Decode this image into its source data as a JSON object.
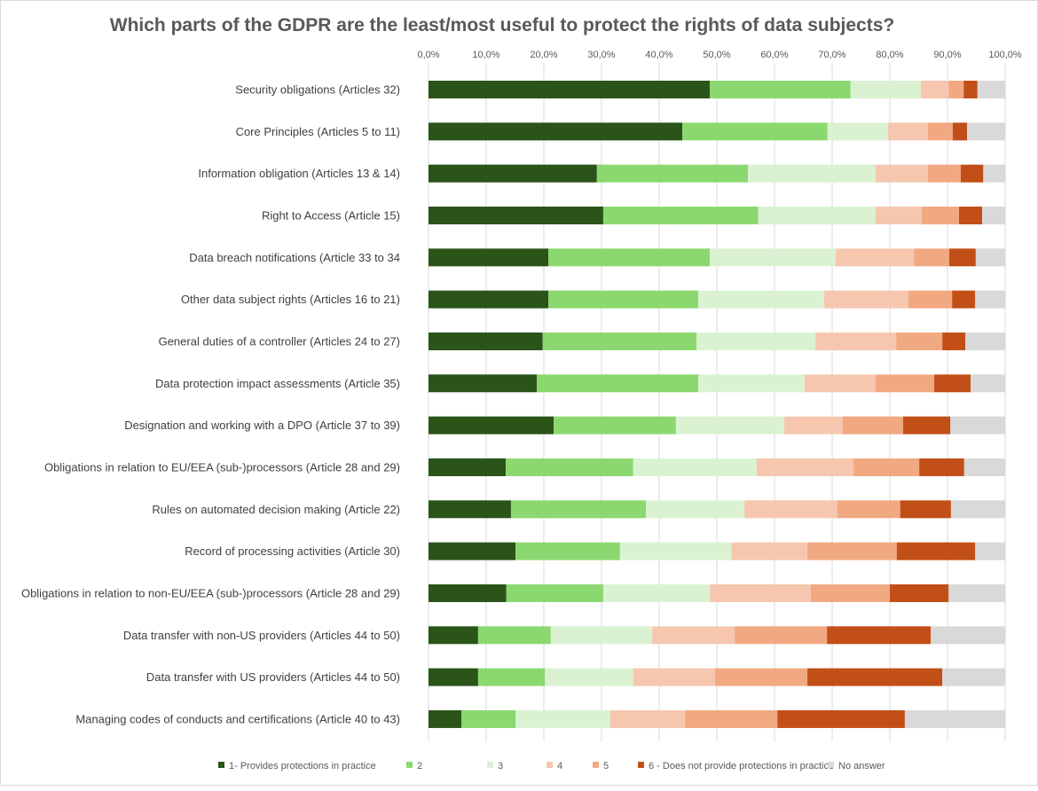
{
  "chart_data": {
    "type": "bar",
    "orientation": "horizontal",
    "stacked": "100%",
    "title": "Which parts of the GDPR are the least/most useful to protect the rights of data subjects?",
    "xlabel": "",
    "ylabel": "",
    "xlim": [
      0,
      100
    ],
    "x_ticks": [
      "0,0%",
      "10,0%",
      "20,0%",
      "30,0%",
      "40,0%",
      "50,0%",
      "60,0%",
      "70,0%",
      "80,0%",
      "90,0%",
      "100,0%"
    ],
    "grid": true,
    "legend_position": "bottom",
    "categories": [
      "Security obligations (Articles 32)",
      "Core Principles (Articles 5 to 11)",
      "Information obligation (Articles 13 & 14)",
      "Right to Access (Article 15)",
      "Data breach notifications (Article 33 to 34",
      "Other data subject rights (Articles 16 to 21)",
      "General duties of a controller (Articles 24 to 27)",
      "Data protection impact assessments (Article 35)",
      "Designation and working with a DPO (Article 37 to 39)",
      "Obligations in relation to EU/EEA (sub-)processors (Article 28 and 29)",
      "Rules on automated decision making (Article 22)",
      "Record of processing activities (Article 30)",
      "Obligations in relation to non-EU/EEA (sub-)processors (Article 28 and 29)",
      "Data transfer with non-US providers (Articles 44 to 50)",
      "Data transfer with US providers (Articles 44 to 50)",
      "Managing codes of conducts and certifications (Article 40 to 43)"
    ],
    "series": [
      {
        "name": "1- Provides protections in practice",
        "color": "#2a5418",
        "values": [
          48.8,
          44.0,
          29.2,
          30.3,
          20.8,
          20.8,
          19.8,
          18.8,
          21.7,
          13.4,
          14.3,
          15.1,
          13.5,
          8.6,
          8.6,
          5.7
        ]
      },
      {
        "name": "2",
        "color": "#8cd870",
        "values": [
          24.4,
          25.2,
          26.2,
          26.9,
          28.0,
          26.0,
          26.7,
          28.0,
          21.2,
          22.1,
          23.4,
          18.1,
          16.8,
          12.6,
          11.6,
          9.4
        ]
      },
      {
        "name": "3",
        "color": "#daf2d2",
        "values": [
          12.2,
          10.5,
          22.1,
          20.3,
          21.8,
          21.8,
          20.6,
          18.4,
          18.8,
          21.4,
          17.1,
          19.3,
          18.5,
          17.6,
          15.3,
          16.4
        ]
      },
      {
        "name": "4",
        "color": "#f6c7ae",
        "values": [
          4.8,
          6.9,
          9.1,
          8.0,
          13.6,
          14.6,
          14.0,
          12.3,
          10.1,
          16.8,
          16.1,
          13.2,
          17.5,
          14.3,
          14.2,
          13.0
        ]
      },
      {
        "name": "5",
        "color": "#f1a982",
        "values": [
          2.6,
          4.3,
          5.7,
          6.5,
          6.1,
          7.6,
          8.0,
          10.2,
          10.5,
          11.4,
          10.9,
          15.5,
          13.7,
          16.0,
          16.0,
          16.0
        ]
      },
      {
        "name": "6 - Does not provide protections in practice",
        "color": "#c24f18",
        "values": [
          2.4,
          2.5,
          3.9,
          4.0,
          4.6,
          4.0,
          4.0,
          6.3,
          8.2,
          7.8,
          8.8,
          13.6,
          10.2,
          18.0,
          23.4,
          22.1
        ]
      },
      {
        "name": "No answer",
        "color": "#d9d9d9",
        "values": [
          4.8,
          6.6,
          3.8,
          4.0,
          5.1,
          5.2,
          6.9,
          6.0,
          9.5,
          7.1,
          9.4,
          5.2,
          9.8,
          12.9,
          10.9,
          17.4
        ]
      }
    ]
  }
}
